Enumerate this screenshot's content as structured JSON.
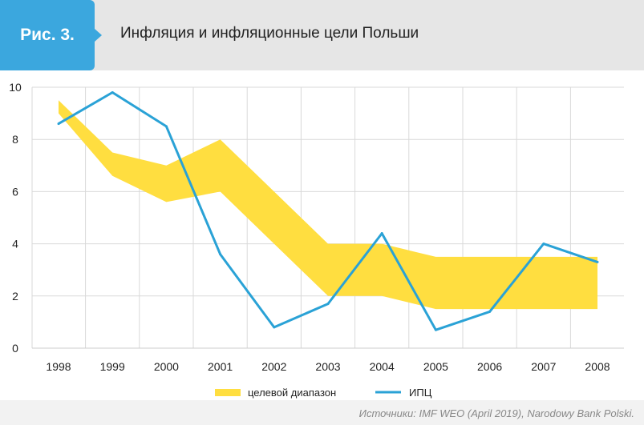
{
  "header": {
    "figure_label": "Рис. 3.",
    "title": "Инфляция и инфляционные цели Польши"
  },
  "colors": {
    "badge": "#3ba7de",
    "band": "#ffde40",
    "line": "#2aa2d6"
  },
  "chart_data": {
    "type": "line",
    "x": [
      1998,
      1999,
      2000,
      2001,
      2002,
      2003,
      2004,
      2005,
      2006,
      2007,
      2008
    ],
    "ylim": [
      0,
      10
    ],
    "yticks": [
      0,
      2,
      4,
      6,
      8,
      10
    ],
    "grid": true,
    "legend_position": "bottom",
    "band": {
      "name": "целевой диапазон",
      "lower": [
        9.0,
        6.6,
        5.6,
        6.0,
        4.0,
        2.0,
        2.0,
        1.5,
        1.5,
        1.5,
        1.5
      ],
      "upper": [
        9.5,
        7.5,
        7.0,
        8.0,
        6.0,
        4.0,
        4.0,
        3.5,
        3.5,
        3.5,
        3.5
      ]
    },
    "series": [
      {
        "name": "ИПЦ",
        "values": [
          8.6,
          9.8,
          8.5,
          3.6,
          0.8,
          1.7,
          4.4,
          0.7,
          1.4,
          4.0,
          3.3
        ]
      }
    ]
  },
  "source": "Источники: IMF WEO (April 2019), Narodowy Bank Polski."
}
